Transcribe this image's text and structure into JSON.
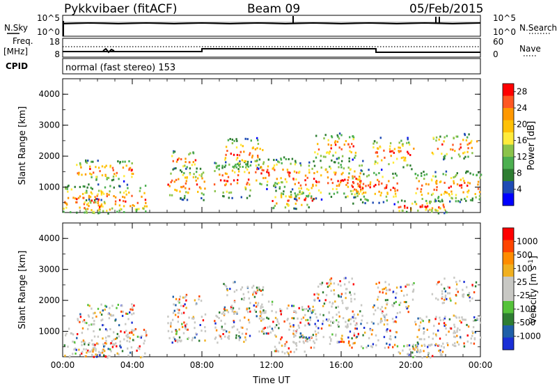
{
  "header": {
    "station": "Pykkvibaer (fitACF)",
    "beam": "Beam 09",
    "date": "05/Feb/2015"
  },
  "status_panel": {
    "nsky_label": "N.Sky",
    "nsky_ticks": [
      "10^5",
      "10^0"
    ],
    "nsearch_label": "N.Search",
    "nsearch_ticks": [
      "10^5",
      "10^0"
    ],
    "freq_label": "Freq.",
    "freq_unit": "[MHz]",
    "freq_ticks": [
      "18",
      "8"
    ],
    "nave_label": "Nave",
    "nave_ticks": [
      "60",
      "0"
    ],
    "cpid_label": "CPID",
    "cpid_value": "normal (fast stereo) 153"
  },
  "colors": {
    "power": [
      "#0000ff",
      "#1e4bb4",
      "#2e7d32",
      "#4caf50",
      "#8bc34a",
      "#ffeb3b",
      "#ffc107",
      "#ff9800",
      "#ff5722",
      "#ff0000"
    ],
    "velocity": [
      "#1a2fd6",
      "#1f5fa8",
      "#2e7d32",
      "#55c23a",
      "#c8c8c4",
      "#c8c8c4",
      "#f0b020",
      "#ff8c00",
      "#ff4500",
      "#ff0000"
    ]
  },
  "chart_data": [
    {
      "type": "heatmap",
      "title": "",
      "xlabel": "",
      "ylabel": "Slant Range [km]",
      "x_ticks": [
        "00:00",
        "04:00",
        "08:00",
        "12:00",
        "16:00",
        "20:00",
        "00:00"
      ],
      "y_ticks": [
        "1000",
        "2000",
        "3000",
        "4000"
      ],
      "ylim": [
        180,
        4500
      ],
      "colorbar": {
        "label": "Power [dB]",
        "ticks": [
          "4",
          "8",
          "12",
          "16",
          "20",
          "24",
          "28"
        ],
        "range": [
          0,
          30
        ]
      }
    },
    {
      "type": "heatmap",
      "title": "",
      "xlabel": "Time UT",
      "ylabel": "Slant Range [km]",
      "x_ticks": [
        "00:00",
        "04:00",
        "08:00",
        "12:00",
        "16:00",
        "20:00",
        "00:00"
      ],
      "y_ticks": [
        "1000",
        "2000",
        "3000",
        "4000"
      ],
      "ylim": [
        180,
        4500
      ],
      "colorbar": {
        "label": "Velocity [m s",
        "label_exponent": "-1",
        "label_close": "]",
        "ticks": [
          "1000",
          "500",
          "100",
          "25",
          "-25",
          "-100",
          "-500",
          "-1000"
        ]
      }
    }
  ]
}
